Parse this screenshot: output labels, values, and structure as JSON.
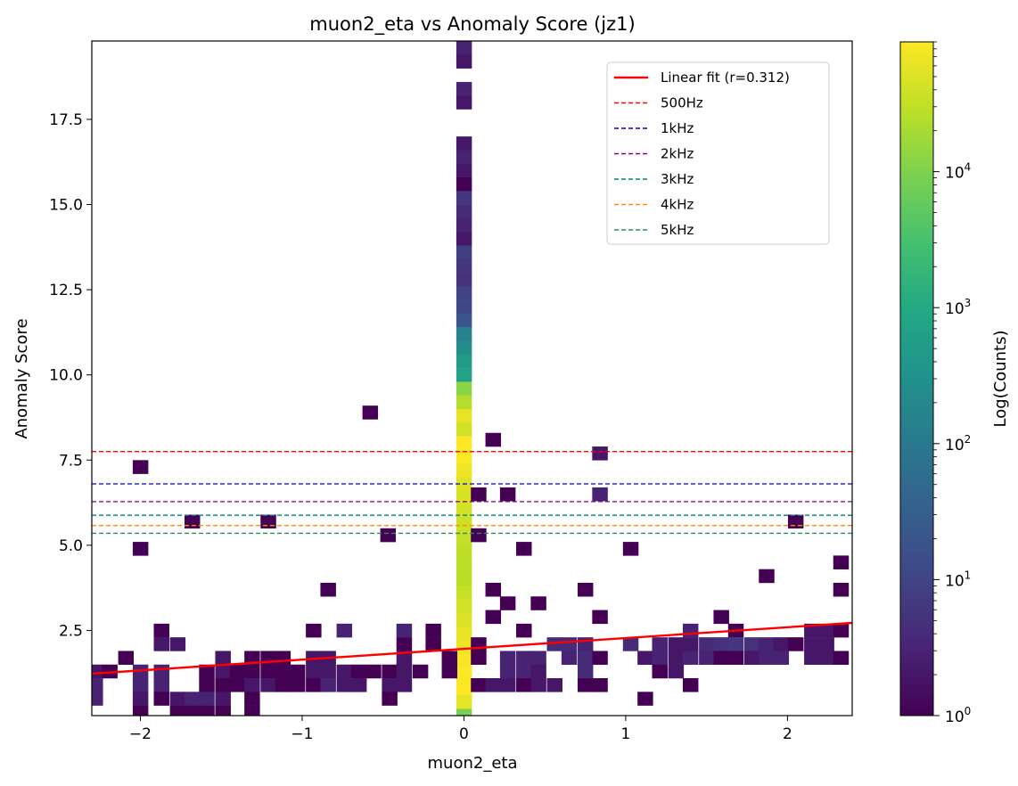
{
  "chart_data": {
    "type": "heatmap",
    "title": "muon2_eta vs Anomaly Score (jz1)",
    "xlabel": "muon2_eta",
    "ylabel": "Anomaly Score",
    "xlim": [
      -2.3,
      2.4
    ],
    "ylim": [
      0.0,
      19.8
    ],
    "xticks": [
      -2,
      -1,
      0,
      1,
      2
    ],
    "xtick_labels": [
      "−2",
      "−1",
      "0",
      "1",
      "2"
    ],
    "yticks": [
      2.5,
      5.0,
      7.5,
      10.0,
      12.5,
      15.0,
      17.5
    ],
    "ytick_labels": [
      "2.5",
      "5.0",
      "7.5",
      "10.0",
      "12.5",
      "15.0",
      "17.5"
    ],
    "colormap": "viridis",
    "color_scale": "log",
    "colorbar": {
      "label": "Log(Counts)",
      "range": [
        1,
        90000
      ],
      "ticks": [
        {
          "value": 1,
          "base": "10",
          "exp": "0"
        },
        {
          "value": 10,
          "base": "10",
          "exp": "1"
        },
        {
          "value": 100,
          "base": "10",
          "exp": "2"
        },
        {
          "value": 1000,
          "base": "10",
          "exp": "3"
        },
        {
          "value": 10000,
          "base": "10",
          "exp": "4"
        }
      ]
    },
    "bins": {
      "x_width": 0.094,
      "y_width": 0.396
    },
    "cells_note_format": "[x_center, y_center, count]",
    "cells": [
      [
        0.0,
        19.6,
        3
      ],
      [
        0.0,
        19.2,
        2
      ],
      [
        0.0,
        18.4,
        3
      ],
      [
        0.0,
        18.0,
        2
      ],
      [
        0.0,
        16.8,
        2
      ],
      [
        0.0,
        16.4,
        3
      ],
      [
        0.0,
        16.0,
        2
      ],
      [
        0.0,
        15.6,
        1
      ],
      [
        0.0,
        15.2,
        6
      ],
      [
        0.0,
        14.8,
        4
      ],
      [
        0.0,
        14.4,
        3
      ],
      [
        0.0,
        14.0,
        2
      ],
      [
        0.0,
        13.6,
        8
      ],
      [
        0.0,
        13.2,
        6
      ],
      [
        0.0,
        12.8,
        5
      ],
      [
        0.0,
        12.4,
        9
      ],
      [
        0.0,
        12.0,
        11
      ],
      [
        0.0,
        11.6,
        20
      ],
      [
        0.0,
        11.2,
        150
      ],
      [
        0.0,
        10.8,
        260
      ],
      [
        0.0,
        10.4,
        500
      ],
      [
        0.0,
        10.0,
        700
      ],
      [
        0.0,
        9.6,
        12000
      ],
      [
        0.0,
        9.2,
        25000
      ],
      [
        0.0,
        8.8,
        60000
      ],
      [
        0.0,
        8.4,
        40000
      ],
      [
        0.0,
        8.0,
        90000
      ],
      [
        0.0,
        7.6,
        88000
      ],
      [
        0.0,
        7.2,
        70000
      ],
      [
        0.0,
        6.8,
        52000
      ],
      [
        0.0,
        6.4,
        45000
      ],
      [
        0.0,
        6.0,
        40000
      ],
      [
        0.0,
        5.6,
        36000
      ],
      [
        0.0,
        5.2,
        32000
      ],
      [
        0.0,
        4.8,
        30000
      ],
      [
        0.0,
        4.4,
        28000
      ],
      [
        0.0,
        4.0,
        27000
      ],
      [
        0.0,
        3.6,
        35000
      ],
      [
        0.0,
        3.2,
        40000
      ],
      [
        0.0,
        2.8,
        50000
      ],
      [
        0.0,
        2.4,
        60000
      ],
      [
        0.0,
        2.0,
        70000
      ],
      [
        0.0,
        1.6,
        80000
      ],
      [
        0.0,
        1.2,
        85000
      ],
      [
        0.0,
        0.8,
        88000
      ],
      [
        0.0,
        0.4,
        60000
      ],
      [
        0.0,
        0.0,
        9000
      ],
      [
        -0.58,
        8.9,
        1
      ],
      [
        0.18,
        8.1,
        1
      ],
      [
        0.84,
        7.7,
        2
      ],
      [
        -2.0,
        7.3,
        1
      ],
      [
        0.09,
        6.5,
        1
      ],
      [
        0.27,
        6.5,
        1
      ],
      [
        0.84,
        6.5,
        3
      ],
      [
        -1.68,
        5.7,
        1
      ],
      [
        -1.21,
        5.7,
        1
      ],
      [
        2.05,
        5.7,
        1
      ],
      [
        -2.0,
        4.9,
        1
      ],
      [
        -0.47,
        5.3,
        1
      ],
      [
        0.09,
        5.3,
        1
      ],
      [
        0.37,
        4.9,
        1
      ],
      [
        1.03,
        4.9,
        1
      ],
      [
        2.33,
        4.5,
        1
      ],
      [
        1.87,
        4.1,
        1
      ],
      [
        2.33,
        3.7,
        1
      ],
      [
        -0.84,
        3.7,
        1
      ],
      [
        0.18,
        3.7,
        1
      ],
      [
        0.75,
        3.7,
        1
      ],
      [
        0.27,
        3.3,
        1
      ],
      [
        0.46,
        3.3,
        1
      ],
      [
        0.18,
        2.9,
        1
      ],
      [
        0.84,
        2.9,
        1
      ],
      [
        1.59,
        2.9,
        1
      ],
      [
        -1.87,
        2.5,
        1
      ],
      [
        -0.93,
        2.5,
        1
      ],
      [
        -0.74,
        2.5,
        3
      ],
      [
        -0.37,
        2.5,
        3
      ],
      [
        -0.19,
        2.5,
        1
      ],
      [
        0.37,
        2.5,
        1
      ],
      [
        1.4,
        2.5,
        3
      ],
      [
        1.68,
        2.5,
        1
      ],
      [
        2.15,
        2.5,
        2
      ],
      [
        2.24,
        2.5,
        2
      ],
      [
        2.33,
        2.5,
        1
      ],
      [
        -1.87,
        2.1,
        2
      ],
      [
        -1.77,
        2.1,
        2
      ],
      [
        -0.37,
        2.1,
        1
      ],
      [
        -0.19,
        2.1,
        1
      ],
      [
        0.09,
        2.1,
        1
      ],
      [
        0.56,
        2.1,
        4
      ],
      [
        0.65,
        2.1,
        4
      ],
      [
        0.75,
        2.1,
        3
      ],
      [
        1.03,
        2.1,
        4
      ],
      [
        1.21,
        2.1,
        3
      ],
      [
        1.31,
        2.1,
        2
      ],
      [
        1.4,
        2.1,
        2
      ],
      [
        1.5,
        2.1,
        4
      ],
      [
        1.59,
        2.1,
        5
      ],
      [
        1.68,
        2.1,
        6
      ],
      [
        1.78,
        2.1,
        5
      ],
      [
        1.87,
        2.1,
        3
      ],
      [
        1.96,
        2.1,
        2
      ],
      [
        2.05,
        2.1,
        1
      ],
      [
        2.15,
        2.1,
        2
      ],
      [
        2.24,
        2.1,
        2
      ],
      [
        -2.09,
        1.7,
        1
      ],
      [
        -1.49,
        1.7,
        2
      ],
      [
        -1.31,
        1.7,
        1
      ],
      [
        -1.21,
        1.7,
        1
      ],
      [
        -1.12,
        1.7,
        1
      ],
      [
        -0.93,
        1.7,
        2
      ],
      [
        -0.84,
        1.7,
        2
      ],
      [
        -0.37,
        1.7,
        2
      ],
      [
        -0.09,
        1.7,
        1
      ],
      [
        0.09,
        1.7,
        1
      ],
      [
        0.27,
        1.7,
        3
      ],
      [
        0.37,
        1.7,
        3
      ],
      [
        0.46,
        1.7,
        3
      ],
      [
        0.65,
        1.7,
        3
      ],
      [
        0.75,
        1.7,
        4
      ],
      [
        0.84,
        1.7,
        1
      ],
      [
        1.12,
        1.7,
        2
      ],
      [
        1.21,
        1.7,
        3
      ],
      [
        1.31,
        1.7,
        2
      ],
      [
        1.4,
        1.7,
        3
      ],
      [
        1.5,
        1.7,
        3
      ],
      [
        1.59,
        1.7,
        1
      ],
      [
        1.68,
        1.7,
        1
      ],
      [
        1.78,
        1.7,
        2
      ],
      [
        1.87,
        1.7,
        3
      ],
      [
        1.96,
        1.7,
        3
      ],
      [
        2.15,
        1.7,
        2
      ],
      [
        2.24,
        1.7,
        2
      ],
      [
        2.33,
        1.7,
        1
      ],
      [
        -2.28,
        1.3,
        2
      ],
      [
        -2.19,
        1.3,
        1
      ],
      [
        -2.0,
        1.3,
        3
      ],
      [
        -1.87,
        1.3,
        3
      ],
      [
        -1.59,
        1.3,
        1
      ],
      [
        -1.49,
        1.3,
        2
      ],
      [
        -1.4,
        1.3,
        1
      ],
      [
        -1.31,
        1.3,
        1
      ],
      [
        -1.21,
        1.3,
        1
      ],
      [
        -1.12,
        1.3,
        1
      ],
      [
        -1.03,
        1.3,
        1
      ],
      [
        -0.93,
        1.3,
        2
      ],
      [
        -0.84,
        1.3,
        2
      ],
      [
        -0.74,
        1.3,
        2
      ],
      [
        -0.65,
        1.3,
        1
      ],
      [
        -0.56,
        1.3,
        1
      ],
      [
        -0.46,
        1.3,
        1
      ],
      [
        -0.37,
        1.3,
        2
      ],
      [
        -0.27,
        1.3,
        1
      ],
      [
        -0.09,
        1.3,
        1
      ],
      [
        0.27,
        1.3,
        3
      ],
      [
        0.37,
        1.3,
        3
      ],
      [
        0.46,
        1.3,
        2
      ],
      [
        0.75,
        1.3,
        4
      ],
      [
        1.21,
        1.3,
        1
      ],
      [
        1.31,
        1.3,
        2
      ],
      [
        -2.28,
        0.9,
        3
      ],
      [
        -2.0,
        0.9,
        3
      ],
      [
        -1.87,
        0.9,
        3
      ],
      [
        -1.59,
        0.9,
        1
      ],
      [
        -1.49,
        0.9,
        1
      ],
      [
        -1.4,
        0.9,
        1
      ],
      [
        -1.31,
        0.9,
        2
      ],
      [
        -1.21,
        0.9,
        2
      ],
      [
        -1.12,
        0.9,
        1
      ],
      [
        -1.03,
        0.9,
        1
      ],
      [
        -0.93,
        0.9,
        1
      ],
      [
        -0.84,
        0.9,
        3
      ],
      [
        -0.74,
        0.9,
        2
      ],
      [
        -0.65,
        0.9,
        2
      ],
      [
        -0.46,
        0.9,
        2
      ],
      [
        -0.37,
        0.9,
        2
      ],
      [
        0.09,
        0.9,
        1
      ],
      [
        0.18,
        0.9,
        2
      ],
      [
        0.27,
        0.9,
        2
      ],
      [
        0.37,
        0.9,
        1
      ],
      [
        0.46,
        0.9,
        2
      ],
      [
        0.56,
        0.9,
        2
      ],
      [
        0.75,
        0.9,
        1
      ],
      [
        0.84,
        0.9,
        1
      ],
      [
        1.4,
        0.9,
        1
      ],
      [
        -2.28,
        0.5,
        3
      ],
      [
        -2.0,
        0.5,
        2
      ],
      [
        -1.87,
        0.5,
        1
      ],
      [
        -1.77,
        0.5,
        2
      ],
      [
        -1.68,
        0.5,
        3
      ],
      [
        -1.59,
        0.5,
        3
      ],
      [
        -1.49,
        0.5,
        2
      ],
      [
        -1.31,
        0.5,
        1
      ],
      [
        -0.46,
        0.5,
        1
      ],
      [
        1.12,
        0.5,
        1
      ],
      [
        -2.0,
        0.1,
        1
      ],
      [
        -1.77,
        0.1,
        1
      ],
      [
        -1.68,
        0.1,
        1
      ],
      [
        -1.59,
        0.1,
        1
      ],
      [
        -1.49,
        0.1,
        1
      ],
      [
        -1.31,
        0.1,
        1
      ]
    ],
    "series": [
      {
        "name": "Linear fit (r=0.312)",
        "type": "line",
        "style": "solid",
        "color": "#ff0000",
        "x": [
          -2.3,
          2.4
        ],
        "y": [
          1.23,
          2.72
        ]
      },
      {
        "name": "500Hz",
        "type": "hline",
        "style": "dashed",
        "color": "#ff0000",
        "y": 7.75
      },
      {
        "name": "1kHz",
        "type": "hline",
        "style": "dashed",
        "color": "#0000cc",
        "y": 6.8
      },
      {
        "name": "2kHz",
        "type": "hline",
        "style": "dashed",
        "color": "#800080",
        "y": 6.28
      },
      {
        "name": "3kHz",
        "type": "hline",
        "style": "dashed",
        "color": "#008080",
        "y": 5.88
      },
      {
        "name": "4kHz",
        "type": "hline",
        "style": "dashed",
        "color": "#ff8c00",
        "y": 5.58
      },
      {
        "name": "5kHz",
        "type": "hline",
        "style": "dashed",
        "color": "#2e8b57",
        "y": 5.35
      }
    ],
    "legend": "top-right",
    "grid": false
  }
}
